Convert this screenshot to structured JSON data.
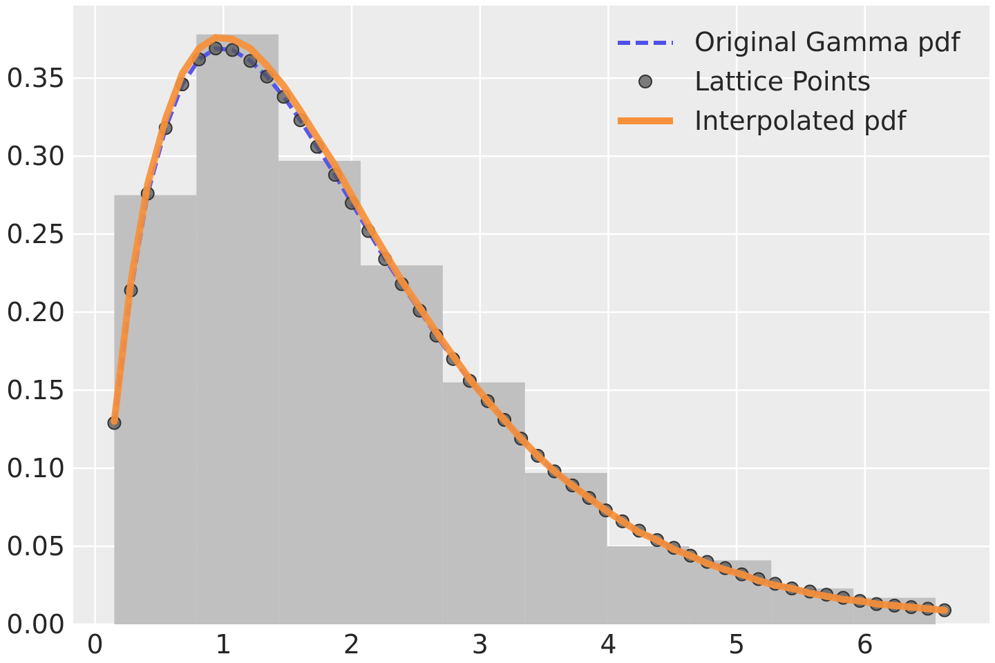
{
  "chart_data": {
    "type": "line",
    "title": "",
    "xlabel": "",
    "ylabel": "",
    "xlim": [
      -0.17,
      6.97
    ],
    "ylim": [
      0.0,
      0.3965
    ],
    "grid": true,
    "legend_position": "top-right",
    "x_ticks": [
      0,
      1,
      2,
      3,
      4,
      5,
      6
    ],
    "x_tick_labels": [
      "0",
      "1",
      "2",
      "3",
      "4",
      "5",
      "6"
    ],
    "y_ticks": [
      0.0,
      0.05,
      0.1,
      0.15,
      0.2,
      0.25,
      0.3,
      0.35
    ],
    "y_tick_labels": [
      "0.00",
      "0.05",
      "0.10",
      "0.15",
      "0.20",
      "0.25",
      "0.30",
      "0.35"
    ],
    "colors": {
      "plot_background": "#ececec",
      "grid": "#ffffff",
      "histogram": "#c0c0c0",
      "gamma_line": "#5050e8",
      "lattice_points": "#555555",
      "interpolated_line": "#f7903a"
    },
    "histogram": {
      "bin_edges": [
        0.15,
        0.79,
        1.43,
        2.07,
        2.71,
        3.35,
        3.99,
        4.63,
        5.27,
        5.91,
        6.55
      ],
      "heights": [
        0.275,
        0.378,
        0.297,
        0.23,
        0.155,
        0.097,
        0.05,
        0.041,
        0.023,
        0.017
      ]
    },
    "series": [
      {
        "name": "Original Gamma pdf",
        "style": "dashed-line",
        "x": [
          0.15,
          0.28,
          0.41,
          0.55,
          0.68,
          0.81,
          0.94,
          1.07,
          1.21,
          1.34,
          1.47,
          1.6,
          1.73,
          1.87,
          2.0,
          2.13,
          2.26,
          2.39,
          2.53,
          2.66,
          2.79,
          2.92,
          3.06,
          3.19,
          3.32,
          3.45,
          3.58,
          3.72,
          3.85,
          3.98,
          4.11,
          4.24,
          4.38,
          4.51,
          4.64,
          4.77,
          4.91,
          5.04,
          5.17,
          5.3,
          5.43,
          5.57,
          5.7,
          5.83,
          5.96,
          6.09,
          6.23,
          6.36,
          6.49,
          6.62
        ],
        "y": [
          0.129,
          0.214,
          0.276,
          0.318,
          0.346,
          0.362,
          0.369,
          0.368,
          0.361,
          0.351,
          0.338,
          0.323,
          0.306,
          0.288,
          0.27,
          0.252,
          0.234,
          0.218,
          0.201,
          0.185,
          0.17,
          0.156,
          0.143,
          0.131,
          0.119,
          0.108,
          0.098,
          0.089,
          0.081,
          0.073,
          0.066,
          0.06,
          0.054,
          0.049,
          0.044,
          0.04,
          0.036,
          0.032,
          0.029,
          0.026,
          0.023,
          0.021,
          0.019,
          0.017,
          0.015,
          0.013,
          0.012,
          0.011,
          0.01,
          0.009
        ]
      },
      {
        "name": "Lattice Points",
        "style": "markers",
        "x": [
          0.15,
          0.28,
          0.41,
          0.55,
          0.68,
          0.81,
          0.94,
          1.07,
          1.21,
          1.34,
          1.47,
          1.6,
          1.73,
          1.87,
          2.0,
          2.13,
          2.26,
          2.39,
          2.53,
          2.66,
          2.79,
          2.92,
          3.06,
          3.19,
          3.32,
          3.45,
          3.58,
          3.72,
          3.85,
          3.98,
          4.11,
          4.24,
          4.38,
          4.51,
          4.64,
          4.77,
          4.91,
          5.04,
          5.17,
          5.3,
          5.43,
          5.57,
          5.7,
          5.83,
          5.96,
          6.09,
          6.23,
          6.36,
          6.49,
          6.62
        ],
        "y": [
          0.129,
          0.214,
          0.276,
          0.318,
          0.346,
          0.362,
          0.369,
          0.368,
          0.361,
          0.351,
          0.338,
          0.323,
          0.306,
          0.288,
          0.27,
          0.252,
          0.234,
          0.218,
          0.201,
          0.185,
          0.17,
          0.156,
          0.143,
          0.131,
          0.119,
          0.108,
          0.098,
          0.089,
          0.081,
          0.073,
          0.066,
          0.06,
          0.054,
          0.049,
          0.044,
          0.04,
          0.036,
          0.032,
          0.029,
          0.026,
          0.023,
          0.021,
          0.019,
          0.017,
          0.015,
          0.013,
          0.012,
          0.011,
          0.01,
          0.009
        ]
      },
      {
        "name": "Interpolated pdf",
        "style": "solid-line",
        "x": [
          0.15,
          0.28,
          0.41,
          0.55,
          0.68,
          0.81,
          0.94,
          1.07,
          1.21,
          1.34,
          1.47,
          1.6,
          1.73,
          1.87,
          2.0,
          2.13,
          2.26,
          2.39,
          2.53,
          2.66,
          2.79,
          2.92,
          3.06,
          3.19,
          3.32,
          3.45,
          3.58,
          3.72,
          3.85,
          3.98,
          4.11,
          4.24,
          4.38,
          4.51,
          4.64,
          4.77,
          4.91,
          5.04,
          5.17,
          5.3,
          5.43,
          5.57,
          5.7,
          5.83,
          5.96,
          6.09,
          6.23,
          6.36,
          6.49,
          6.62
        ],
        "y": [
          0.13,
          0.22,
          0.282,
          0.324,
          0.353,
          0.369,
          0.376,
          0.375,
          0.369,
          0.358,
          0.345,
          0.329,
          0.312,
          0.294,
          0.275,
          0.256,
          0.238,
          0.22,
          0.203,
          0.187,
          0.172,
          0.157,
          0.143,
          0.131,
          0.119,
          0.108,
          0.098,
          0.089,
          0.081,
          0.073,
          0.066,
          0.059,
          0.054,
          0.048,
          0.044,
          0.039,
          0.035,
          0.032,
          0.028,
          0.025,
          0.023,
          0.02,
          0.018,
          0.016,
          0.015,
          0.013,
          0.012,
          0.011,
          0.01,
          0.009
        ]
      }
    ]
  }
}
